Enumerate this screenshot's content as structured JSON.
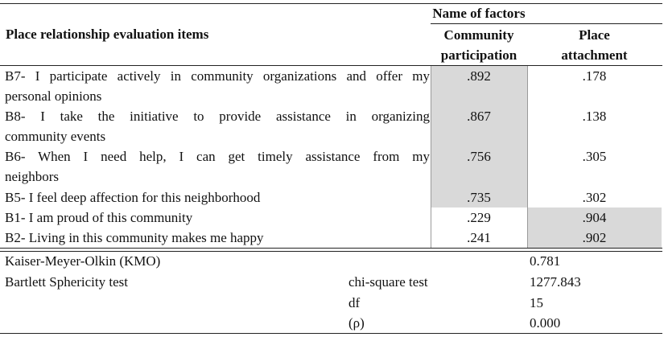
{
  "table": {
    "header": {
      "factors_title": "Name of factors",
      "items_title": "Place relationship evaluation items",
      "col1_line1": "Community",
      "col1_line2": "participation",
      "col2_line1": "Place",
      "col2_line2": "attachment"
    },
    "rows": [
      {
        "line1": "B7- I participate actively in community organizations and offer my",
        "line2": "personal opinions",
        "community_participation": ".892",
        "place_attachment": ".178"
      },
      {
        "line1": "B8- I take the initiative to provide assistance in organizing",
        "line2": "community events",
        "community_participation": ".867",
        "place_attachment": ".138"
      },
      {
        "line1": "B6- When I need help, I can get timely assistance from my",
        "line2": "neighbors",
        "community_participation": ".756",
        "place_attachment": ".305"
      },
      {
        "line1": "B5- I feel deep affection for this neighborhood",
        "line2": "",
        "community_participation": ".735",
        "place_attachment": ".302"
      },
      {
        "line1": "B1- I am proud of this community",
        "line2": "",
        "community_participation": ".229",
        "place_attachment": ".904"
      },
      {
        "line1": "B2- Living in this community makes me happy",
        "line2": "",
        "community_participation": ".241",
        "place_attachment": ".902"
      }
    ],
    "stats": {
      "kmo_label": "Kaiser-Meyer-Olkin (KMO)",
      "kmo_value": "0.781",
      "bartlett_label": "Bartlett Sphericity test",
      "chi_label": "chi-square test",
      "chi_value": "1277.843",
      "df_label": "df",
      "df_value": "15",
      "p_label": "(ρ)",
      "p_value": "0.000"
    },
    "colors": {
      "highlight": "#d9d9d9",
      "rule": "#222222"
    }
  }
}
